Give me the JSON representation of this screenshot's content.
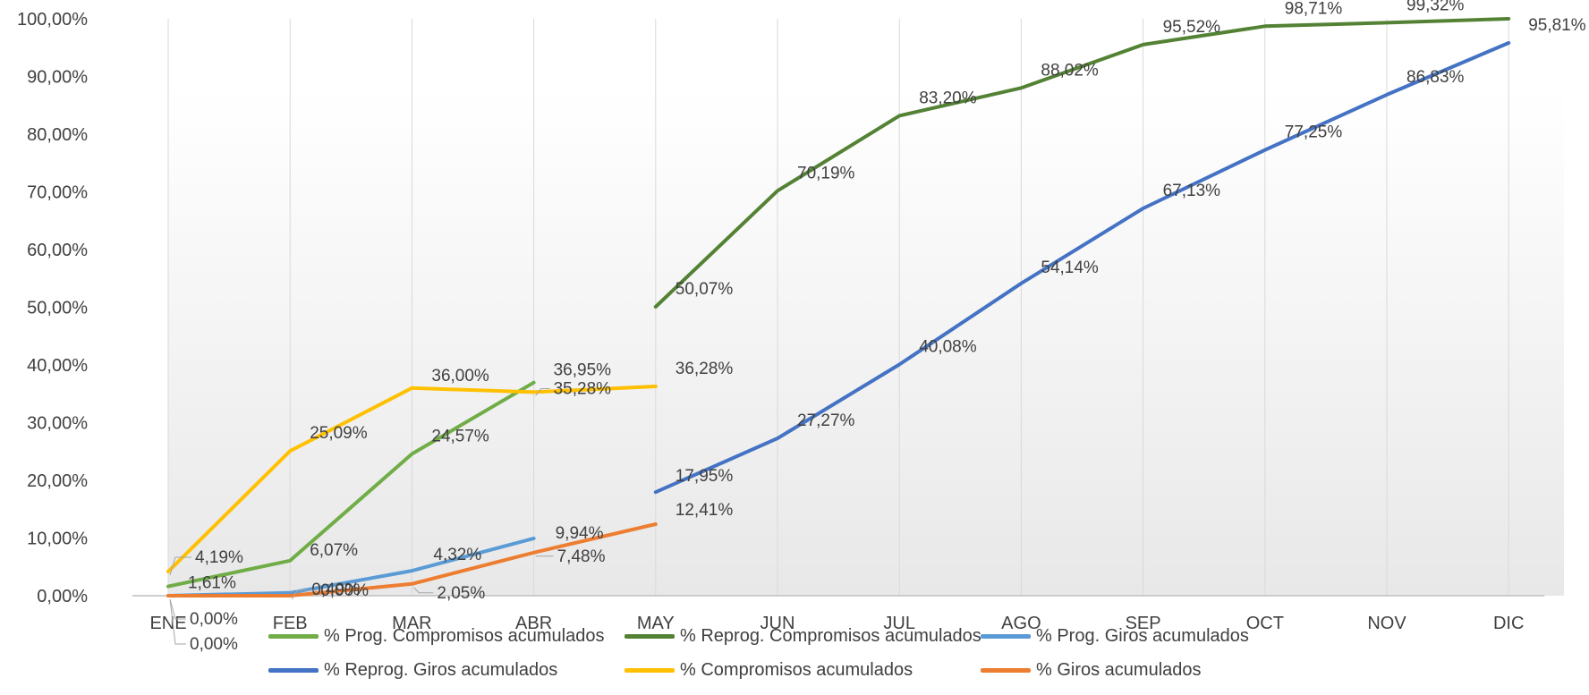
{
  "chart_data": {
    "type": "line",
    "categories": [
      "ENE",
      "FEB",
      "MAR",
      "ABR",
      "MAY",
      "JUN",
      "JUL",
      "AGO",
      "SEP",
      "OCT",
      "NOV",
      "DIC"
    ],
    "ylim": [
      0,
      100
    ],
    "y_ticks": [
      "0,00%",
      "10,00%",
      "20,00%",
      "30,00%",
      "40,00%",
      "50,00%",
      "60,00%",
      "70,00%",
      "80,00%",
      "90,00%",
      "100,00%"
    ],
    "grid": "vertical",
    "legend_position": "bottom",
    "series": [
      {
        "name": "% Prog. Compromisos acumulados",
        "color": "#70AD47",
        "values": [
          1.61,
          6.07,
          24.57,
          36.95,
          null,
          null,
          null,
          null,
          null,
          null,
          null,
          null
        ],
        "labels": [
          "1,61%",
          "6,07%",
          "24,57%",
          "36,95%",
          null,
          null,
          null,
          null,
          null,
          null,
          null,
          null
        ]
      },
      {
        "name": "% Reprog. Compromisos acumulados",
        "color": "#548235",
        "values": [
          null,
          null,
          null,
          null,
          50.07,
          70.19,
          83.2,
          88.02,
          95.52,
          98.71,
          99.32,
          100
        ],
        "labels": [
          null,
          null,
          null,
          null,
          "50,07%",
          "70,19%",
          "83,20%",
          "88,02%",
          "95,52%",
          "98,71%",
          "99,32%",
          null
        ]
      },
      {
        "name": "% Prog. Giros acumulados",
        "color": "#5B9BD5",
        "values": [
          0.0,
          0.49,
          4.32,
          9.94,
          null,
          null,
          null,
          null,
          null,
          null,
          null,
          null
        ],
        "labels": [
          "0,00%",
          "0,49%",
          "4,32%",
          "9,94%",
          null,
          null,
          null,
          null,
          null,
          null,
          null,
          null
        ]
      },
      {
        "name": "% Reprog. Giros acumulados",
        "color": "#4472C4",
        "values": [
          null,
          null,
          null,
          null,
          17.95,
          27.27,
          40.08,
          54.14,
          67.13,
          77.25,
          86.83,
          95.81
        ],
        "labels": [
          null,
          null,
          null,
          null,
          "17,95%",
          "27,27%",
          "40,08%",
          "54,14%",
          "67,13%",
          "77,25%",
          "86,83%",
          "95,81%"
        ]
      },
      {
        "name": "% Compromisos acumulados",
        "color": "#FFC000",
        "values": [
          4.19,
          25.09,
          36.0,
          35.28,
          36.28,
          null,
          null,
          null,
          null,
          null,
          null,
          null
        ],
        "labels": [
          "4,19%",
          "25,09%",
          "36,00%",
          "35,28%",
          "36,28%",
          null,
          null,
          null,
          null,
          null,
          null,
          null
        ]
      },
      {
        "name": "% Giros acumulados",
        "color": "#ED7D31",
        "values": [
          0.0,
          0.0,
          2.05,
          7.48,
          12.41,
          null,
          null,
          null,
          null,
          null,
          null,
          null
        ],
        "labels": [
          "0,00%",
          "0,00%",
          "2,05%",
          "7,48%",
          "12,41%",
          null,
          null,
          null,
          null,
          null,
          null,
          null
        ]
      }
    ]
  }
}
